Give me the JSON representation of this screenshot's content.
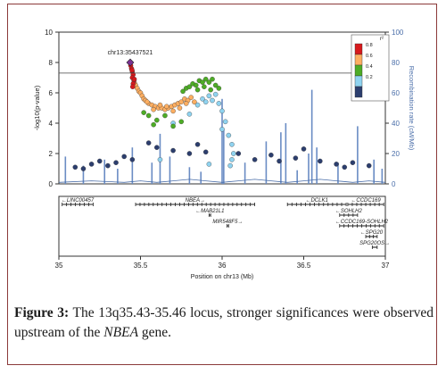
{
  "figure": {
    "caption_label": "Figure 3:",
    "caption_part1": " The 13q35.43-35.46 locus, stronger significances were observed upstream of the ",
    "caption_gene": "NBEA",
    "caption_part2": " gene."
  },
  "chart_data": {
    "type": "scatter",
    "title": "",
    "xlabel": "Position on chr13 (Mb)",
    "ylabel": "-log10(p-value)",
    "y2label": "Recombination rate (cM/Mb)",
    "xlim": [
      35.0,
      37.0
    ],
    "ylim": [
      0,
      10
    ],
    "y2lim": [
      0,
      100
    ],
    "x_ticks": [
      "35",
      "35.5",
      "36",
      "36.5",
      "37"
    ],
    "y_ticks": [
      "0",
      "2",
      "4",
      "6",
      "8",
      "10"
    ],
    "y2_ticks": [
      "0",
      "20",
      "40",
      "60",
      "80",
      "100"
    ],
    "grid": false,
    "lead_snp": {
      "label": "chr13:35437521",
      "x": 35.437,
      "y": 8.0
    },
    "reference_line_y": 7.3,
    "legend": {
      "title": "r²",
      "placement": "top-right",
      "entries": [
        {
          "label": "0.8",
          "color": "#d7191c"
        },
        {
          "label": "0.6",
          "color": "#fdae61"
        },
        {
          "label": "0.4",
          "color": "#4dac26"
        },
        {
          "label": "0.2",
          "color": "#8fd3f0"
        },
        {
          "label": "",
          "color": "#2c3e6e"
        }
      ]
    },
    "colors": {
      "axis": "#333333",
      "recomb": "#4a6ea9",
      "recomb_bar": "#6a8cc4"
    },
    "ld_bins": [
      {
        "r2": ">0.8",
        "color": "#d7191c",
        "points": [
          [
            35.437,
            8.0
          ],
          [
            35.44,
            7.8
          ],
          [
            35.445,
            7.6
          ],
          [
            35.45,
            7.4
          ],
          [
            35.455,
            7.2
          ],
          [
            35.45,
            7.0
          ],
          [
            35.46,
            6.8
          ],
          [
            35.455,
            6.6
          ],
          [
            35.462,
            6.9
          ],
          [
            35.448,
            7.5
          ],
          [
            35.452,
            6.4
          ]
        ]
      },
      {
        "r2": "0.6-0.8",
        "color": "#fdae61",
        "points": [
          [
            35.465,
            6.6
          ],
          [
            35.47,
            6.5
          ],
          [
            35.48,
            6.3
          ],
          [
            35.49,
            6.1
          ],
          [
            35.5,
            6.0
          ],
          [
            35.51,
            5.8
          ],
          [
            35.52,
            5.6
          ],
          [
            35.53,
            5.5
          ],
          [
            35.55,
            5.3
          ],
          [
            35.57,
            5.2
          ],
          [
            35.59,
            5.1
          ],
          [
            35.61,
            5.0
          ],
          [
            35.63,
            5.0
          ],
          [
            35.65,
            4.9
          ],
          [
            35.67,
            5.0
          ],
          [
            35.69,
            5.1
          ],
          [
            35.71,
            5.2
          ],
          [
            35.73,
            5.3
          ],
          [
            35.75,
            5.4
          ],
          [
            35.77,
            5.6
          ],
          [
            35.79,
            5.5
          ],
          [
            35.81,
            5.7
          ],
          [
            35.83,
            5.4
          ],
          [
            35.58,
            4.9
          ],
          [
            35.62,
            5.2
          ],
          [
            35.66,
            5.1
          ],
          [
            35.7,
            4.8
          ],
          [
            35.54,
            5.4
          ],
          [
            35.74,
            5.0
          ],
          [
            35.78,
            5.3
          ]
        ]
      },
      {
        "r2": "0.4-0.6",
        "color": "#4dac26",
        "points": [
          [
            35.76,
            6.1
          ],
          [
            35.78,
            6.3
          ],
          [
            35.8,
            6.4
          ],
          [
            35.82,
            6.6
          ],
          [
            35.84,
            6.5
          ],
          [
            35.86,
            6.8
          ],
          [
            35.88,
            6.7
          ],
          [
            35.9,
            6.9
          ],
          [
            35.92,
            6.7
          ],
          [
            35.94,
            6.9
          ],
          [
            35.96,
            6.5
          ],
          [
            35.98,
            6.3
          ],
          [
            35.85,
            6.2
          ],
          [
            35.89,
            6.4
          ],
          [
            35.93,
            6.2
          ],
          [
            35.55,
            4.5
          ],
          [
            35.6,
            4.2
          ],
          [
            35.65,
            4.5
          ],
          [
            35.7,
            3.8
          ],
          [
            35.75,
            4.1
          ],
          [
            35.52,
            4.7
          ],
          [
            35.58,
            3.9
          ]
        ]
      },
      {
        "r2": "0.2-0.4",
        "color": "#8fd3f0",
        "points": [
          [
            35.85,
            5.2
          ],
          [
            35.88,
            5.6
          ],
          [
            35.9,
            5.4
          ],
          [
            35.92,
            5.8
          ],
          [
            35.94,
            5.5
          ],
          [
            35.96,
            5.9
          ],
          [
            35.98,
            5.3
          ],
          [
            36.0,
            4.8
          ],
          [
            36.02,
            4.1
          ],
          [
            36.04,
            3.2
          ],
          [
            36.06,
            2.6
          ],
          [
            36.07,
            2.0
          ],
          [
            36.06,
            1.6
          ],
          [
            36.05,
            1.2
          ],
          [
            35.8,
            4.6
          ],
          [
            35.7,
            4.0
          ],
          [
            36.0,
            3.6
          ],
          [
            35.62,
            1.6
          ],
          [
            35.92,
            1.3
          ]
        ]
      },
      {
        "r2": "<0.2",
        "color": "#2c3e6e",
        "points": [
          [
            35.1,
            1.1
          ],
          [
            35.2,
            1.3
          ],
          [
            35.3,
            1.2
          ],
          [
            35.4,
            1.8
          ],
          [
            35.55,
            2.7
          ],
          [
            35.6,
            2.4
          ],
          [
            35.7,
            2.2
          ],
          [
            35.8,
            2.0
          ],
          [
            35.9,
            2.1
          ],
          [
            36.1,
            2.0
          ],
          [
            36.2,
            1.6
          ],
          [
            36.3,
            1.9
          ],
          [
            36.45,
            1.7
          ],
          [
            36.5,
            2.3
          ],
          [
            36.6,
            1.5
          ],
          [
            36.7,
            1.3
          ],
          [
            36.8,
            1.4
          ],
          [
            36.9,
            1.2
          ],
          [
            35.25,
            1.5
          ],
          [
            35.35,
            1.4
          ],
          [
            35.45,
            1.6
          ],
          [
            36.35,
            1.5
          ],
          [
            36.75,
            1.1
          ],
          [
            35.15,
            1.0
          ],
          [
            35.85,
            2.6
          ]
        ]
      }
    ],
    "recombination_line": [
      [
        35.0,
        1
      ],
      [
        35.2,
        2
      ],
      [
        35.4,
        1
      ],
      [
        35.5,
        2
      ],
      [
        35.6,
        1
      ],
      [
        35.7,
        2
      ],
      [
        35.8,
        3
      ],
      [
        35.9,
        2
      ],
      [
        36.0,
        1
      ],
      [
        36.1,
        2
      ],
      [
        36.2,
        3
      ],
      [
        36.3,
        2
      ],
      [
        36.4,
        1
      ],
      [
        36.5,
        2
      ],
      [
        36.6,
        3
      ],
      [
        36.7,
        2
      ],
      [
        36.8,
        1
      ],
      [
        36.9,
        2
      ],
      [
        37.0,
        1
      ]
    ],
    "recombination_spikes": [
      [
        35.04,
        18
      ],
      [
        35.15,
        12
      ],
      [
        35.28,
        16
      ],
      [
        35.36,
        10
      ],
      [
        35.45,
        24
      ],
      [
        35.57,
        14
      ],
      [
        35.62,
        33
      ],
      [
        35.68,
        18
      ],
      [
        35.8,
        11
      ],
      [
        35.87,
        8
      ],
      [
        36.0,
        56
      ],
      [
        36.01,
        36
      ],
      [
        36.14,
        14
      ],
      [
        36.27,
        28
      ],
      [
        36.36,
        34
      ],
      [
        36.39,
        40
      ],
      [
        36.46,
        9
      ],
      [
        36.53,
        20
      ],
      [
        36.55,
        62
      ],
      [
        36.58,
        24
      ],
      [
        36.71,
        14
      ],
      [
        36.83,
        38
      ],
      [
        36.93,
        16
      ],
      [
        36.98,
        10
      ]
    ],
    "genes": [
      {
        "name": "LINC00457",
        "start": 35.02,
        "end": 35.21,
        "row": 0,
        "strand": "-"
      },
      {
        "name": "NBEA",
        "start": 35.47,
        "end": 36.2,
        "row": 0,
        "strand": "+"
      },
      {
        "name": "DCLK1",
        "start": 36.4,
        "end": 36.76,
        "row": 0,
        "strand": "-"
      },
      {
        "name": "CCDC169",
        "start": 36.77,
        "end": 36.99,
        "row": 0,
        "strand": "-"
      },
      {
        "name": "MAB21L1",
        "start": 35.92,
        "end": 35.93,
        "row": 1,
        "strand": "-"
      },
      {
        "name": "SOHLH2",
        "start": 36.72,
        "end": 36.83,
        "row": 1,
        "strand": "-"
      },
      {
        "name": "MIR548F5",
        "start": 36.03,
        "end": 36.04,
        "row": 2,
        "strand": "+"
      },
      {
        "name": "CCDC169-SOHLH2",
        "start": 36.72,
        "end": 36.99,
        "row": 2,
        "strand": "-"
      },
      {
        "name": "SPG20",
        "start": 36.88,
        "end": 36.95,
        "row": 3,
        "strand": "-"
      },
      {
        "name": "SPG20OS",
        "start": 36.92,
        "end": 36.95,
        "row": 4,
        "strand": "+"
      }
    ]
  }
}
